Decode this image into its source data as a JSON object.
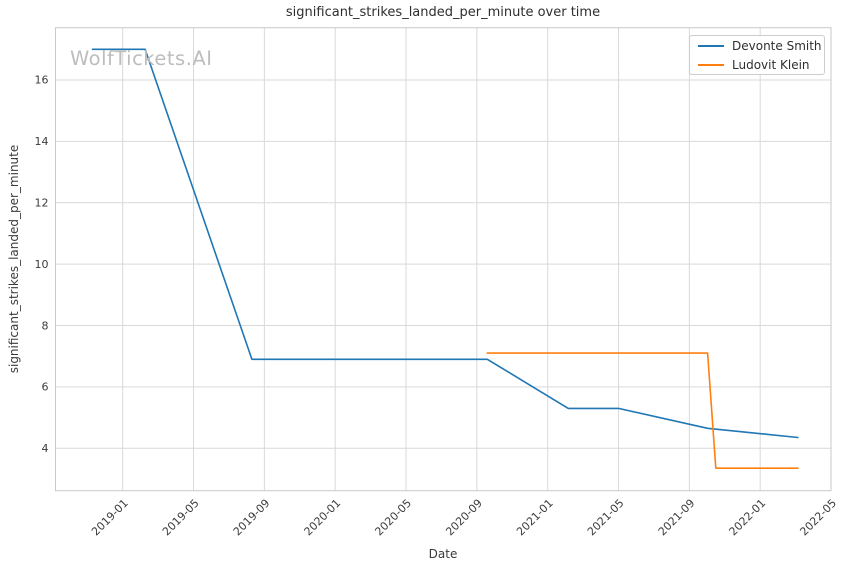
{
  "watermark": "WolfTickets.AI",
  "chart_data": {
    "type": "line",
    "title": "significant_strikes_landed_per_minute over time",
    "xlabel": "Date",
    "ylabel": "significant_strikes_landed_per_minute",
    "grid": true,
    "legend_position": "upper right",
    "xlim": [
      "2018-09",
      "2022-05"
    ],
    "ylim": [
      2.6,
      17.7
    ],
    "x_ticks": [
      "2019-01",
      "2019-05",
      "2019-09",
      "2020-01",
      "2020-05",
      "2020-09",
      "2021-01",
      "2021-05",
      "2021-09",
      "2022-01",
      "2022-05"
    ],
    "y_ticks": [
      4,
      6,
      8,
      10,
      12,
      14,
      16
    ],
    "series": [
      {
        "name": "Devonte Smith",
        "color": "#1f77b4",
        "points": [
          [
            "2018-11-10",
            17.0
          ],
          [
            "2019-02-09",
            17.0
          ],
          [
            "2019-08-10",
            6.9
          ],
          [
            "2020-09-19",
            6.9
          ],
          [
            "2021-02-06",
            5.3
          ],
          [
            "2021-05-01",
            5.3
          ],
          [
            "2021-10-02",
            4.65
          ],
          [
            "2022-03-05",
            4.35
          ]
        ]
      },
      {
        "name": "Ludovit Klein",
        "color": "#ff7f0e",
        "points": [
          [
            "2020-09-19",
            7.1
          ],
          [
            "2021-10-02",
            7.1
          ],
          [
            "2021-10-16",
            3.35
          ],
          [
            "2022-03-05",
            3.35
          ]
        ]
      }
    ],
    "colors": {
      "grid": "#d9d9d9",
      "border": "#c9c9c9",
      "tick_text": "#3b3b3b"
    }
  }
}
